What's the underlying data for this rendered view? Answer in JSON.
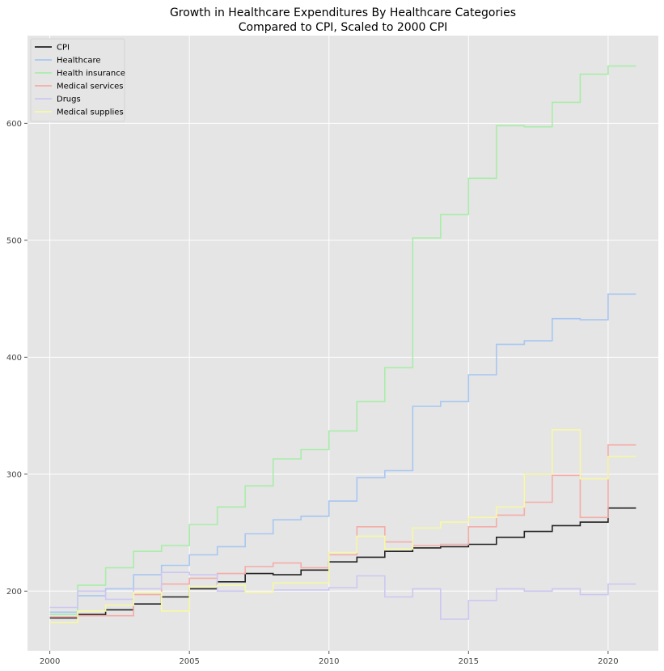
{
  "chart_data": {
    "type": "line",
    "step": "post",
    "title_lines": [
      "Growth in Healthcare Expenditures By Healthcare Categories",
      "Compared to CPI, Scaled to 2000 CPI"
    ],
    "xlabel": "",
    "ylabel": "",
    "xlim": [
      1999.2,
      2021.8
    ],
    "ylim": [
      149,
      675
    ],
    "xticks": [
      2000,
      2005,
      2010,
      2015,
      2020
    ],
    "yticks": [
      200,
      300,
      400,
      500,
      600
    ],
    "grid": true,
    "legend_position": "top-left",
    "x": [
      2000,
      2001,
      2002,
      2003,
      2004,
      2005,
      2006,
      2007,
      2008,
      2009,
      2010,
      2011,
      2012,
      2013,
      2014,
      2015,
      2016,
      2017,
      2018,
      2019,
      2020,
      2021
    ],
    "series": [
      {
        "name": "CPI",
        "color": "#222222",
        "values": [
          177,
          180,
          184,
          189,
          195,
          202,
          208,
          215,
          214,
          218,
          225,
          229,
          234,
          237,
          238,
          240,
          246,
          251,
          256,
          259,
          271,
          271
        ]
      },
      {
        "name": "Healthcare",
        "color": "#a7c7f2",
        "values": [
          182,
          196,
          202,
          214,
          222,
          231,
          238,
          249,
          261,
          264,
          277,
          297,
          303,
          358,
          362,
          385,
          411,
          414,
          433,
          432,
          454,
          454
        ]
      },
      {
        "name": "Health insurance",
        "color": "#a8eda8",
        "values": [
          180,
          205,
          220,
          234,
          239,
          257,
          272,
          290,
          313,
          321,
          337,
          362,
          391,
          502,
          522,
          553,
          598,
          597,
          618,
          642,
          649,
          649
        ]
      },
      {
        "name": "Medical services",
        "color": "#f5aca8",
        "values": [
          178,
          179,
          179,
          197,
          206,
          211,
          215,
          221,
          224,
          220,
          231,
          255,
          242,
          239,
          240,
          255,
          265,
          276,
          299,
          263,
          325,
          325
        ]
      },
      {
        "name": "Drugs",
        "color": "#cdc7f3",
        "values": [
          186,
          200,
          193,
          202,
          216,
          214,
          200,
          199,
          201,
          201,
          203,
          213,
          195,
          202,
          176,
          192,
          202,
          200,
          202,
          197,
          206,
          206
        ]
      },
      {
        "name": "Medical supplies",
        "color": "#f8f8a6",
        "values": [
          173,
          183,
          188,
          199,
          183,
          204,
          205,
          199,
          207,
          207,
          233,
          247,
          236,
          254,
          259,
          263,
          272,
          300,
          338,
          296,
          315,
          315
        ]
      }
    ]
  }
}
